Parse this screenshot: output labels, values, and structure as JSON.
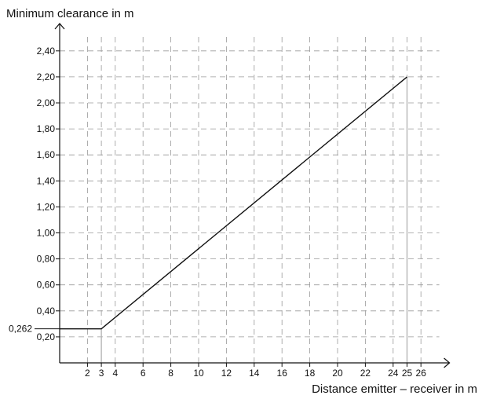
{
  "chart_data": {
    "type": "line",
    "xlabel": "Distance emitter – receiver in m",
    "ylabel": "Minimum clearance in m",
    "x_ticks": [
      2,
      3,
      4,
      6,
      8,
      10,
      12,
      14,
      16,
      18,
      20,
      22,
      24,
      25,
      26
    ],
    "x_tick_labels": [
      "2",
      "3",
      "4",
      "6",
      "8",
      "10",
      "12",
      "14",
      "16",
      "18",
      "20",
      "22",
      "24",
      "25",
      "26"
    ],
    "y_ticks": [
      0.2,
      0.4,
      0.6,
      0.8,
      1.0,
      1.2,
      1.4,
      1.6,
      1.8,
      2.0,
      2.2,
      2.4
    ],
    "y_tick_labels": [
      "0,20",
      "0,40",
      "0,60",
      "0,80",
      "1,00",
      "1,20",
      "1,40",
      "1,60",
      "1,80",
      "2,00",
      "2,20",
      "2,40"
    ],
    "y_special": {
      "value": 0.262,
      "label": "0,262"
    },
    "xlim": [
      0,
      28
    ],
    "ylim": [
      0,
      2.55
    ],
    "grid": true,
    "series": [
      {
        "x": [
          0,
          3,
          25
        ],
        "y": [
          0.262,
          0.262,
          2.2
        ]
      }
    ],
    "guides": [
      {
        "x": 3,
        "y_from": 0,
        "y_to": 0.262
      },
      {
        "x": 25,
        "y_from": 0,
        "y_to": 2.2
      }
    ]
  }
}
